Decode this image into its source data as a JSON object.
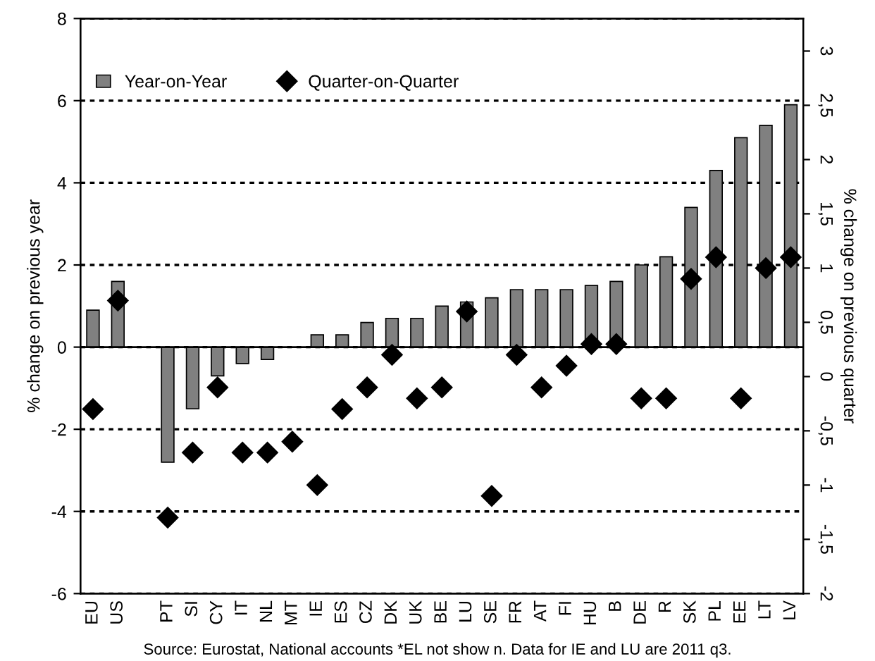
{
  "chart_data": {
    "type": "bar",
    "categories": [
      "EU",
      "US",
      null,
      "PT",
      "SI",
      "CY",
      "IT",
      "NL",
      "MT",
      "IE",
      "ES",
      "CZ",
      "DK",
      "UK",
      "BE",
      "LU",
      "SE",
      "FR",
      "AT",
      "FI",
      "HU",
      "B",
      "DE",
      "R",
      "SK",
      "PL",
      "EE",
      "LT",
      "LV"
    ],
    "series": [
      {
        "name": "Year-on-Year",
        "color": "#808080",
        "values": [
          0.9,
          1.6,
          null,
          -2.8,
          -1.5,
          -0.7,
          -0.4,
          -0.3,
          null,
          0.3,
          0.3,
          0.6,
          0.7,
          0.7,
          1.0,
          1.1,
          1.2,
          1.4,
          1.4,
          1.4,
          1.5,
          1.6,
          2.0,
          2.2,
          3.4,
          4.3,
          5.1,
          5.4,
          5.9
        ]
      },
      {
        "name": "Quarter-on-Quarter",
        "type": "scatter",
        "axis": "y2",
        "marker": "diamond",
        "color": "#000000",
        "values": [
          -0.3,
          0.7,
          null,
          -1.3,
          -0.7,
          -0.1,
          -0.7,
          -0.7,
          -0.6,
          -1.0,
          -0.3,
          -0.1,
          0.2,
          -0.2,
          -0.1,
          0.6,
          -1.1,
          0.2,
          -0.1,
          0.1,
          0.3,
          0.3,
          -0.2,
          -0.2,
          0.9,
          1.1,
          -0.2,
          1.0,
          1.1
        ]
      }
    ],
    "ylabel": "% change on previous year",
    "y2label": "% change on previous quarter",
    "ylim": [
      -6,
      8
    ],
    "yticks": [
      -6,
      -4,
      -2,
      0,
      2,
      4,
      6,
      8
    ],
    "y2lim": [
      -2,
      3.3
    ],
    "y2ticks": [
      -2,
      {
        "value": -1.5,
        "label": "-1,5"
      },
      -1,
      {
        "value": -0.5,
        "label": "-0,5"
      },
      0,
      {
        "value": 0.5,
        "label": "0,5"
      },
      1,
      {
        "value": 1.5,
        "label": "1,5"
      },
      2,
      {
        "value": 2.5,
        "label": "2,5"
      },
      3
    ],
    "grid": "y",
    "legend": "top left",
    "annotations": [
      "Source: Eurostat, National accounts *EL not show n. Data for IE and LU are 2011 q3."
    ]
  }
}
